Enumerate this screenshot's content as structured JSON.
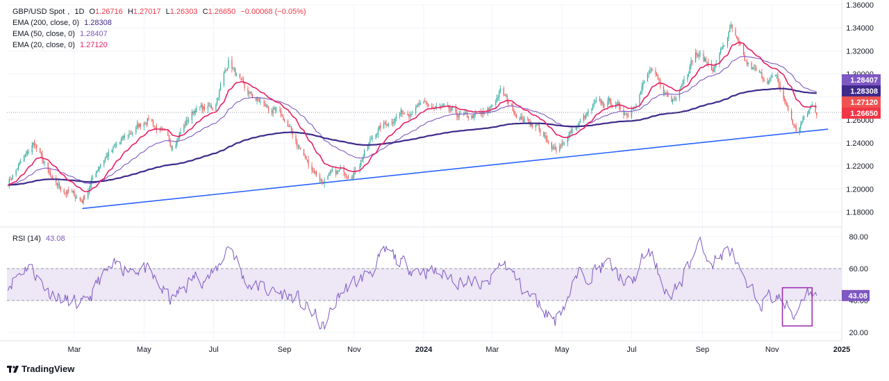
{
  "header": {
    "symbol": "GBP/USD Spot",
    "interval": "1D",
    "open_label": "O",
    "open": "1.26716",
    "high_label": "H",
    "high": "1.27017",
    "low_label": "L",
    "low": "1.26303",
    "close_label": "C",
    "close": "1.26650",
    "change": "−0.00068 (−0.05%)"
  },
  "indicators": [
    {
      "label": "EMA (200, close, 0)",
      "value": "1.28308",
      "color": "#3f2a8a"
    },
    {
      "label": "EMA (50, close, 0)",
      "value": "1.28407",
      "color": "#7e57c2"
    },
    {
      "label": "EMA (20, close, 0)",
      "value": "1.27120",
      "color": "#e91e63"
    }
  ],
  "rsi": {
    "label": "RSI (14)",
    "value": "43.08",
    "color": "#7e57c2"
  },
  "branding": "TradingView",
  "colors": {
    "up": "#26a69a",
    "down": "#ef5350",
    "trendline": "#2962ff",
    "rsi_band": "#ede7f6"
  },
  "chart_data": [
    {
      "type": "candlestick",
      "panel": "price",
      "ylim": [
        1.17,
        1.36
      ],
      "yticks": [
        "1.36000",
        "1.34000",
        "1.32000",
        "1.30000",
        "1.28000",
        "1.26000",
        "1.24000",
        "1.22000",
        "1.20000",
        "1.18000"
      ],
      "x_ticks": [
        "Mar",
        "May",
        "Jul",
        "Sep",
        "Nov",
        "2024",
        "Mar",
        "May",
        "Jul",
        "Sep",
        "Nov",
        "2025"
      ],
      "x_range": [
        "2023-01-01",
        "2025-01-01"
      ],
      "close_path": [
        [
          "2023-01-01",
          1.205
        ],
        [
          "2023-01-15",
          1.225
        ],
        [
          "2023-01-25",
          1.24
        ],
        [
          "2023-02-10",
          1.205
        ],
        [
          "2023-03-08",
          1.19
        ],
        [
          "2023-03-25",
          1.225
        ],
        [
          "2023-04-15",
          1.245
        ],
        [
          "2023-05-05",
          1.262
        ],
        [
          "2023-05-25",
          1.238
        ],
        [
          "2023-06-15",
          1.27
        ],
        [
          "2023-07-01",
          1.27
        ],
        [
          "2023-07-14",
          1.312
        ],
        [
          "2023-07-28",
          1.285
        ],
        [
          "2023-08-15",
          1.272
        ],
        [
          "2023-09-01",
          1.26
        ],
        [
          "2023-09-20",
          1.225
        ],
        [
          "2023-10-04",
          1.207
        ],
        [
          "2023-10-20",
          1.215
        ],
        [
          "2023-11-01",
          1.215
        ],
        [
          "2023-11-20",
          1.25
        ],
        [
          "2023-12-10",
          1.265
        ],
        [
          "2023-12-28",
          1.272
        ],
        [
          "2024-01-15",
          1.27
        ],
        [
          "2024-02-05",
          1.262
        ],
        [
          "2024-02-25",
          1.265
        ],
        [
          "2024-03-08",
          1.285
        ],
        [
          "2024-03-25",
          1.262
        ],
        [
          "2024-04-10",
          1.255
        ],
        [
          "2024-04-22",
          1.232
        ],
        [
          "2024-05-10",
          1.25
        ],
        [
          "2024-05-30",
          1.272
        ],
        [
          "2024-06-12",
          1.276
        ],
        [
          "2024-06-28",
          1.265
        ],
        [
          "2024-07-17",
          1.302
        ],
        [
          "2024-08-05",
          1.276
        ],
        [
          "2024-08-26",
          1.318
        ],
        [
          "2024-09-11",
          1.305
        ],
        [
          "2024-09-26",
          1.34
        ],
        [
          "2024-10-08",
          1.31
        ],
        [
          "2024-10-23",
          1.297
        ],
        [
          "2024-11-05",
          1.295
        ],
        [
          "2024-11-22",
          1.25
        ],
        [
          "2024-12-06",
          1.272
        ],
        [
          "2024-12-10",
          1.2665
        ]
      ],
      "ema200_value": 1.28308,
      "ema50_value": 1.28407,
      "ema20_value": 1.2712,
      "last_price": 1.2665,
      "price_labels": [
        {
          "text": "1.28407",
          "value": 1.28407,
          "color": "#7e57c2"
        },
        {
          "text": "1.28308",
          "value": 1.28308,
          "color": "#3f2a8a"
        },
        {
          "text": "1.27120",
          "value": 1.2712,
          "color": "#ef5350"
        },
        {
          "text": "1.26650",
          "value": 1.2665,
          "color": "#f23645"
        }
      ],
      "trendline": [
        [
          "2023-03-08",
          1.183
        ],
        [
          "2024-12-20",
          1.252
        ]
      ]
    },
    {
      "type": "line",
      "panel": "rsi",
      "ylim": [
        16,
        84
      ],
      "yticks": [
        "80.00",
        "60.00",
        "40.00",
        "20.00"
      ],
      "band": [
        40,
        60
      ],
      "path": [
        [
          "2023-01-01",
          50
        ],
        [
          "2023-01-20",
          63
        ],
        [
          "2023-02-05",
          47
        ],
        [
          "2023-02-20",
          40
        ],
        [
          "2023-03-10",
          36
        ],
        [
          "2023-03-25",
          55
        ],
        [
          "2023-04-10",
          62
        ],
        [
          "2023-05-01",
          60
        ],
        [
          "2023-05-25",
          40
        ],
        [
          "2023-06-15",
          55
        ],
        [
          "2023-07-01",
          55
        ],
        [
          "2023-07-15",
          77
        ],
        [
          "2023-07-28",
          52
        ],
        [
          "2023-08-20",
          46
        ],
        [
          "2023-09-10",
          42
        ],
        [
          "2023-09-28",
          30
        ],
        [
          "2023-10-05",
          22
        ],
        [
          "2023-10-20",
          45
        ],
        [
          "2023-11-10",
          55
        ],
        [
          "2023-11-30",
          70
        ],
        [
          "2023-12-15",
          62
        ],
        [
          "2024-01-10",
          58
        ],
        [
          "2024-02-01",
          53
        ],
        [
          "2024-02-25",
          48
        ],
        [
          "2024-03-10",
          65
        ],
        [
          "2024-03-30",
          45
        ],
        [
          "2024-04-15",
          35
        ],
        [
          "2024-04-25",
          28
        ],
        [
          "2024-05-15",
          55
        ],
        [
          "2024-06-10",
          63
        ],
        [
          "2024-06-30",
          48
        ],
        [
          "2024-07-15",
          72
        ],
        [
          "2024-08-05",
          40
        ],
        [
          "2024-08-28",
          75
        ],
        [
          "2024-09-10",
          65
        ],
        [
          "2024-09-26",
          72
        ],
        [
          "2024-10-08",
          48
        ],
        [
          "2024-10-22",
          40
        ],
        [
          "2024-11-05",
          43
        ],
        [
          "2024-11-20",
          30
        ],
        [
          "2024-12-01",
          48
        ],
        [
          "2024-12-10",
          43.08
        ]
      ],
      "highlight_box": {
        "x0": "2024-11-10",
        "x1": "2024-12-06",
        "y0": 24,
        "y1": 48
      },
      "value_label": {
        "text": "43.08",
        "value": 43.08
      }
    }
  ]
}
